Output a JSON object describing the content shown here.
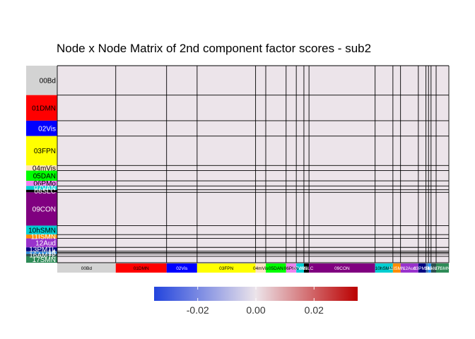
{
  "chart_data": {
    "type": "heatmap",
    "title": "Node x Node Matrix of 2nd component factor scores - sub2",
    "networks": [
      {
        "label": "00Bd",
        "nodes": 23,
        "color": "#d3d3d3",
        "text_color": "#000000"
      },
      {
        "label": "01DMN",
        "nodes": 20,
        "color": "#ff0000",
        "text_color": "#000000"
      },
      {
        "label": "02Vis",
        "nodes": 12,
        "color": "#0000ff",
        "text_color": "#ffffff"
      },
      {
        "label": "03FPN",
        "nodes": 23,
        "color": "#ffff00",
        "text_color": "#000000"
      },
      {
        "label": "04mVis",
        "nodes": 4,
        "color": "#ffe4c4",
        "text_color": "#000000"
      },
      {
        "label": "05DAN",
        "nodes": 8,
        "color": "#00ff00",
        "text_color": "#000000"
      },
      {
        "label": "06PMo",
        "nodes": 4,
        "color": "#ee82ee",
        "text_color": "#000000"
      },
      {
        "label": "07VAN",
        "nodes": 3,
        "color": "#00ced1",
        "text_color": "#ffffff"
      },
      {
        "label": "08SLC",
        "nodes": 2,
        "color": "#000000",
        "text_color": "#ffffff"
      },
      {
        "label": "09CON",
        "nodes": 26,
        "color": "#800080",
        "text_color": "#ffffff"
      },
      {
        "label": "10hSMN",
        "nodes": 7,
        "color": "#00ced1",
        "text_color": "#000000"
      },
      {
        "label": "11ISMN",
        "nodes": 3,
        "color": "#ff8c00",
        "text_color": "#ffffff"
      },
      {
        "label": "12Aud",
        "nodes": 7,
        "color": "#9932cc",
        "text_color": "#ffffff"
      },
      {
        "label": "13PMTL",
        "nodes": 3,
        "color": "#000080",
        "text_color": "#ffffff"
      },
      {
        "label": "14",
        "nodes": 1,
        "color": "#4682b4",
        "text_color": "#ffffff"
      },
      {
        "label": "15",
        "nodes": 1,
        "color": "#1e90ff",
        "text_color": "#ffffff"
      },
      {
        "label": "16AMTL",
        "nodes": 2,
        "color": "#2f4f4f",
        "text_color": "#ffffff"
      },
      {
        "label": "17SMN",
        "nodes": 5,
        "color": "#2e8b57",
        "text_color": "#ffffff"
      }
    ],
    "cell_value_uniform": 0.0,
    "colorbar": {
      "low_color": "#2244dd",
      "mid_color": "#ece4ea",
      "high_color": "#bb0000",
      "range": [
        -0.035,
        0.035
      ],
      "ticks": [
        -0.02,
        0.0,
        0.02
      ],
      "tick_labels": [
        "-0.02",
        "0.00",
        "0.02"
      ]
    }
  }
}
